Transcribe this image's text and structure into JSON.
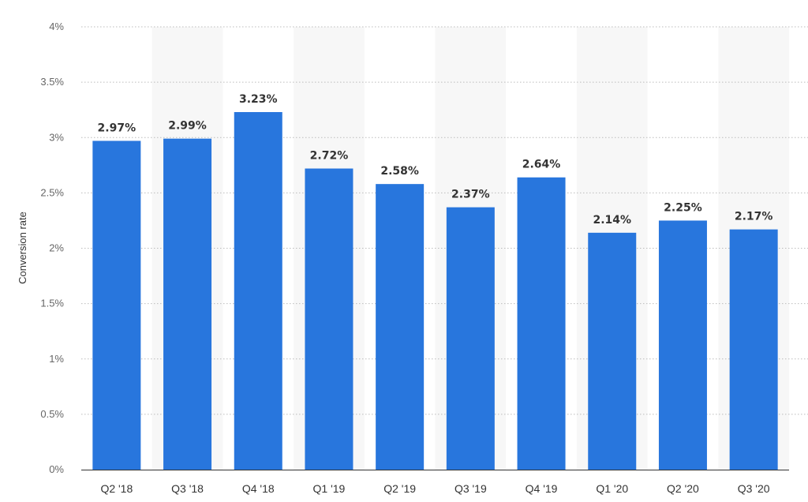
{
  "colors": {
    "bar": "#2876dd",
    "band": "#f7f7f7",
    "grid": "#bcbcbc",
    "axis": "#333333"
  },
  "chart_data": {
    "type": "bar",
    "title": "",
    "xlabel": "",
    "ylabel": "Conversion rate",
    "categories": [
      "Q2 '18",
      "Q3 '18",
      "Q4 '18",
      "Q1 '19",
      "Q2 '19",
      "Q3 '19",
      "Q4 '19",
      "Q1 '20",
      "Q2 '20",
      "Q3 '20"
    ],
    "values": [
      2.97,
      2.99,
      3.23,
      2.72,
      2.58,
      2.37,
      2.64,
      2.14,
      2.25,
      2.17
    ],
    "data_labels": [
      "2.97%",
      "2.99%",
      "3.23%",
      "2.72%",
      "2.58%",
      "2.37%",
      "2.64%",
      "2.14%",
      "2.25%",
      "2.17%"
    ],
    "ylim": [
      0,
      4
    ],
    "y_ticks": [
      0,
      0.5,
      1,
      1.5,
      2,
      2.5,
      3,
      3.5,
      4
    ],
    "y_tick_labels": [
      "0%",
      "0.5%",
      "1%",
      "1.5%",
      "2%",
      "2.5%",
      "3%",
      "3.5%",
      "4%"
    ],
    "grid": true,
    "legend": "none"
  }
}
